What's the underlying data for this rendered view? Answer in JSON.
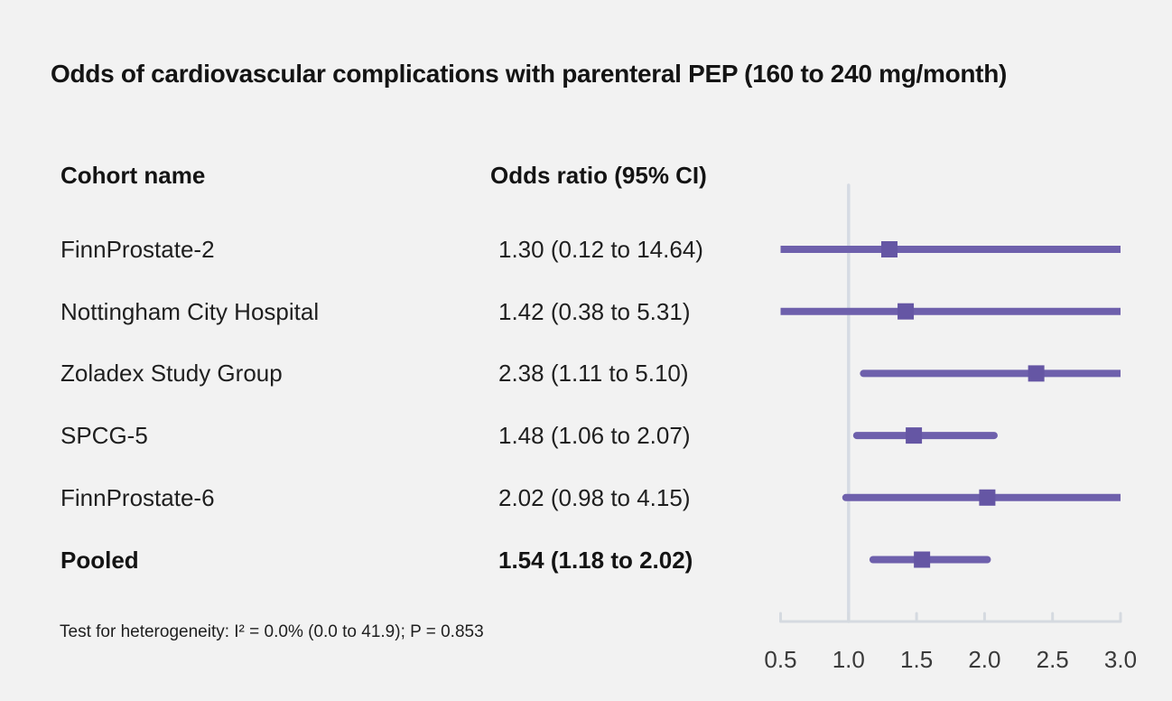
{
  "figure": {
    "title": "Odds of cardiovascular complications with parenteral PEP (160 to 240 mg/month)",
    "columns": {
      "cohort": "Cohort name",
      "odds_ratio": "Odds ratio (95% CI)"
    },
    "footnote": "Test for heterogeneity: I² = 0.0% (0.0 to 41.9); P = 0.853"
  },
  "chart_data": {
    "type": "scatter",
    "variant": "forest-plot",
    "title": "Odds of cardiovascular complications with parenteral PEP (160 to 240 mg/month)",
    "xlabel": "",
    "ylabel": "",
    "xlim": [
      0.5,
      3.0
    ],
    "grid": false,
    "legend": null,
    "x_axis": {
      "min": 0.5,
      "max": 3.0,
      "scale": "linear",
      "ticks": [
        0.5,
        1.0,
        1.5,
        2.0,
        2.5,
        3.0
      ],
      "tick_labels": [
        "0.5",
        "1.0",
        "1.5",
        "2.0",
        "2.5",
        "3.0"
      ],
      "reference_line": 1.0
    },
    "rows": [
      {
        "cohort": "FinnProstate-2",
        "display": "1.30 (0.12 to 14.64)",
        "estimate": 1.3,
        "ci_lower": 0.12,
        "ci_upper": 14.64,
        "pooled": false
      },
      {
        "cohort": "Nottingham City Hospital",
        "display": "1.42 (0.38 to 5.31)",
        "estimate": 1.42,
        "ci_lower": 0.38,
        "ci_upper": 5.31,
        "pooled": false
      },
      {
        "cohort": "Zoladex Study Group",
        "display": "2.38 (1.11 to 5.10)",
        "estimate": 2.38,
        "ci_lower": 1.11,
        "ci_upper": 5.1,
        "pooled": false
      },
      {
        "cohort": "SPCG-5",
        "display": "1.48 (1.06 to 2.07)",
        "estimate": 1.48,
        "ci_lower": 1.06,
        "ci_upper": 2.07,
        "pooled": false
      },
      {
        "cohort": "FinnProstate-6",
        "display": "2.02 (0.98 to 4.15)",
        "estimate": 2.02,
        "ci_lower": 0.98,
        "ci_upper": 4.15,
        "pooled": false
      },
      {
        "cohort": "Pooled",
        "display": "1.54 (1.18 to 2.02)",
        "estimate": 1.54,
        "ci_lower": 1.18,
        "ci_upper": 2.02,
        "pooled": true
      }
    ],
    "heterogeneity": {
      "I2_percent": 0.0,
      "I2_ci": [
        0.0,
        41.9
      ],
      "P": 0.853
    }
  },
  "colors": {
    "background": "#F2F2F2",
    "marker": "#6556A4",
    "ci_line": "#6E60AC",
    "reference_line": "#D6DBE3",
    "axis": "#D5DAE0",
    "tick_label": "#3A3A3A",
    "text": "#1A1A1A"
  }
}
